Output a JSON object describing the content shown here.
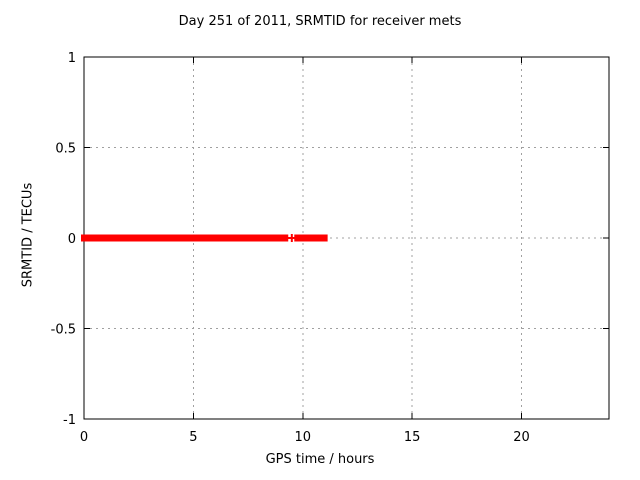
{
  "chart_data": {
    "type": "scatter",
    "title": "Day 251 of 2011, SRMTID for receiver mets",
    "xlabel": "GPS time / hours",
    "ylabel": "SRMTID / TECUs",
    "xlim": [
      0,
      24
    ],
    "ylim": [
      -1,
      1
    ],
    "x_ticks": [
      0,
      5,
      10,
      15,
      20
    ],
    "x_tick_labels": [
      "0",
      "5",
      "10",
      "15",
      "20"
    ],
    "y_ticks": [
      -1,
      -0.5,
      0,
      0.5,
      1
    ],
    "y_tick_labels": [
      "-1",
      "-0.5",
      "0",
      "0.5",
      "1"
    ],
    "grid": true,
    "legend": "none",
    "marker": "plus",
    "series": [
      {
        "name": "SRMTID",
        "color": "#ff0000",
        "y_value": 0,
        "segments": [
          [
            0,
            8.9
          ],
          [
            9.1,
            9.2
          ],
          [
            9.75,
            11.0
          ]
        ],
        "isolated_points": [
          9.5
        ]
      }
    ],
    "colors": {
      "background": "#ffffff",
      "border": "#000000",
      "grid": "#a0a0a0",
      "series": "#ff0000",
      "text": "#000000"
    }
  }
}
